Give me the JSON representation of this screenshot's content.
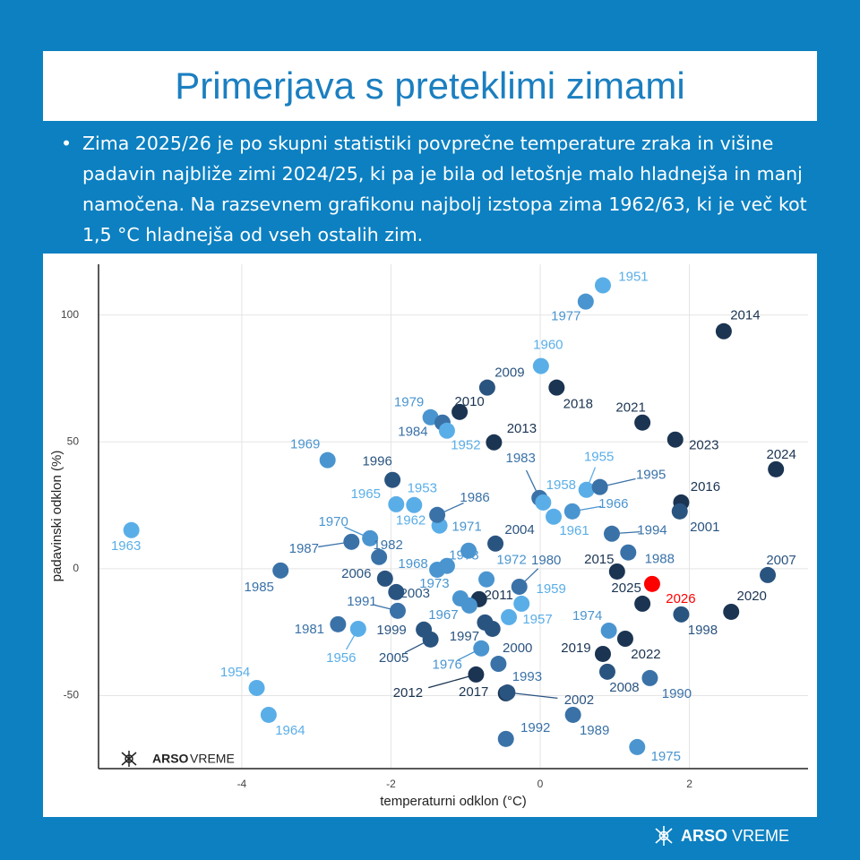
{
  "title": "Primerjava s preteklimi zimami",
  "bullet": "Zima 2025/26 je po skupni statistiki povprečne temperature zraka in višine padavin najbliže zimi 2024/25, ki pa je bila od letošnje malo hladnejša in manj namočena. Na razsevnem grafikonu najbolj izstopa zima 1962/63, ki je več kot 1,5 °C hladnejša od vseh ostalih zim.",
  "logo": {
    "brand": "ARSO",
    "name": "VREME"
  },
  "chart_data": {
    "type": "scatter",
    "x_label": "temperaturni odklon (°C)",
    "y_label": "padavinski odklon (%)",
    "xlim": [
      -5.92,
      3.59
    ],
    "ylim": [
      -78.8,
      120
    ],
    "xticks": [
      -4,
      -2,
      0,
      2
    ],
    "yticks": [
      -50,
      0,
      50,
      100
    ],
    "grid": true,
    "points": [
      {
        "label": "1951",
        "x": 0.84,
        "y": 111.7,
        "color": "#5aaee8"
      },
      {
        "label": "1977",
        "x": 0.61,
        "y": 105.3,
        "color": "#4a95d0"
      },
      {
        "label": "2014",
        "x": 2.46,
        "y": 93.6,
        "color": "#1b3452"
      },
      {
        "label": "1960",
        "x": 0.01,
        "y": 79.9,
        "color": "#5aaee8"
      },
      {
        "label": "2009",
        "x": -0.71,
        "y": 71.4,
        "color": "#2a5480"
      },
      {
        "label": "2018",
        "x": 0.22,
        "y": 71.4,
        "color": "#1b3452"
      },
      {
        "label": "1979",
        "x": -1.47,
        "y": 59.7,
        "color": "#4a95d0"
      },
      {
        "label": "1984",
        "x": -1.31,
        "y": 57.6,
        "color": "#3a72a8"
      },
      {
        "label": "1952",
        "x": -1.25,
        "y": 54.4,
        "color": "#5aaee8"
      },
      {
        "label": "2010",
        "x": -1.08,
        "y": 61.8,
        "color": "#1b3452"
      },
      {
        "label": "2021",
        "x": 1.37,
        "y": 57.6,
        "color": "#1b3452"
      },
      {
        "label": "2013",
        "x": -0.62,
        "y": 49.8,
        "color": "#1b3452"
      },
      {
        "label": "2023",
        "x": 1.81,
        "y": 50.9,
        "color": "#1b3452"
      },
      {
        "label": "2024",
        "x": 3.16,
        "y": 39.2,
        "color": "#1b3452"
      },
      {
        "label": "1969",
        "x": -2.85,
        "y": 42.8,
        "color": "#4a95d0"
      },
      {
        "label": "1996",
        "x": -1.98,
        "y": 35.0,
        "color": "#2a5480"
      },
      {
        "label": "1965",
        "x": -1.93,
        "y": 25.4,
        "color": "#5aaee8"
      },
      {
        "label": "1953",
        "x": -1.69,
        "y": 25.1,
        "color": "#5aaee8"
      },
      {
        "label": "1962",
        "x": -1.35,
        "y": 17.0,
        "color": "#5aaee8"
      },
      {
        "label": "1986",
        "x": -1.38,
        "y": 21.2,
        "color": "#3a72a8"
      },
      {
        "label": "1963",
        "x": -5.48,
        "y": 15.2,
        "color": "#5aaee8"
      },
      {
        "label": "1983",
        "x": -0.01,
        "y": 27.9,
        "color": "#3a72a8"
      },
      {
        "label": "1958",
        "x": 0.04,
        "y": 26.1,
        "color": "#5aaee8"
      },
      {
        "label": "1955",
        "x": 0.62,
        "y": 31.1,
        "color": "#5aaee8"
      },
      {
        "label": "1995",
        "x": 0.8,
        "y": 32.2,
        "color": "#3a72a8"
      },
      {
        "label": "1966",
        "x": 0.43,
        "y": 22.6,
        "color": "#4a95d0"
      },
      {
        "label": "1961",
        "x": 0.18,
        "y": 20.5,
        "color": "#5aaee8"
      },
      {
        "label": "2016",
        "x": 1.89,
        "y": 26.1,
        "color": "#1b3452"
      },
      {
        "label": "2001",
        "x": 1.87,
        "y": 22.6,
        "color": "#2a5480"
      },
      {
        "label": "1994",
        "x": 0.96,
        "y": 13.8,
        "color": "#3a72a8"
      },
      {
        "label": "1970",
        "x": -2.28,
        "y": 12.0,
        "color": "#4a95d0"
      },
      {
        "label": "1987",
        "x": -2.53,
        "y": 10.6,
        "color": "#3a72a8"
      },
      {
        "label": "1982",
        "x": -2.16,
        "y": 4.6,
        "color": "#3a72a8"
      },
      {
        "label": "1971",
        "x": -0.96,
        "y": 7.1,
        "color": "#4a95d0"
      },
      {
        "label": "2004",
        "x": -0.6,
        "y": 9.9,
        "color": "#2a5480"
      },
      {
        "label": "1978",
        "x": -1.25,
        "y": 1.1,
        "color": "#4a95d0"
      },
      {
        "label": "1968",
        "x": -1.38,
        "y": -0.4,
        "color": "#4a95d0"
      },
      {
        "label": "1988",
        "x": 1.18,
        "y": 6.4,
        "color": "#3a72a8"
      },
      {
        "label": "2015",
        "x": 1.03,
        "y": -1.1,
        "color": "#1b3452"
      },
      {
        "label": "2007",
        "x": 3.05,
        "y": -2.5,
        "color": "#2a5480"
      },
      {
        "label": "1985",
        "x": -3.48,
        "y": -0.7,
        "color": "#3a72a8"
      },
      {
        "label": "2006",
        "x": -2.08,
        "y": -3.9,
        "color": "#2a5480"
      },
      {
        "label": "2003",
        "x": -1.93,
        "y": -9.2,
        "color": "#2a5480"
      },
      {
        "label": "1972",
        "x": -0.72,
        "y": -4.2,
        "color": "#4a95d0"
      },
      {
        "label": "1980",
        "x": -0.28,
        "y": -7.1,
        "color": "#3a72a8"
      },
      {
        "label": "2025",
        "x": 1.37,
        "y": -13.8,
        "color": "#1b3452"
      },
      {
        "label": "2026",
        "x": 1.5,
        "y": -6.0,
        "color": "#ff0000"
      },
      {
        "label": "1998",
        "x": 1.89,
        "y": -18.0,
        "color": "#2a5480"
      },
      {
        "label": "2020",
        "x": 2.56,
        "y": -17.0,
        "color": "#1b3452"
      },
      {
        "label": "1973",
        "x": -1.07,
        "y": -11.7,
        "color": "#4a95d0"
      },
      {
        "label": "2011",
        "x": -0.82,
        "y": -12.0,
        "color": "#1b3452"
      },
      {
        "label": "1959",
        "x": -0.25,
        "y": -13.8,
        "color": "#5aaee8"
      },
      {
        "label": "1991",
        "x": -1.91,
        "y": -16.6,
        "color": "#3a72a8"
      },
      {
        "label": "1967",
        "x": -0.95,
        "y": -14.5,
        "color": "#4a95d0"
      },
      {
        "label": "1957",
        "x": -0.42,
        "y": -19.1,
        "color": "#5aaee8"
      },
      {
        "label": "1974",
        "x": 0.92,
        "y": -24.4,
        "color": "#4a95d0"
      },
      {
        "label": "1981",
        "x": -2.71,
        "y": -21.9,
        "color": "#3a72a8"
      },
      {
        "label": "1956",
        "x": -2.44,
        "y": -23.7,
        "color": "#5aaee8"
      },
      {
        "label": "1999",
        "x": -1.56,
        "y": -24.0,
        "color": "#2a5480"
      },
      {
        "label": "2005",
        "x": -1.47,
        "y": -27.9,
        "color": "#2a5480"
      },
      {
        "label": "1997",
        "x": -0.74,
        "y": -21.2,
        "color": "#2a5480"
      },
      {
        "label": "2000",
        "x": -0.64,
        "y": -23.7,
        "color": "#2a5480"
      },
      {
        "label": "2019",
        "x": 0.84,
        "y": -33.6,
        "color": "#1b3452"
      },
      {
        "label": "2022",
        "x": 1.14,
        "y": -27.6,
        "color": "#1b3452"
      },
      {
        "label": "1976",
        "x": -0.79,
        "y": -31.4,
        "color": "#4a95d0"
      },
      {
        "label": "2012",
        "x": -0.86,
        "y": -41.7,
        "color": "#1b3452"
      },
      {
        "label": "1993",
        "x": -0.56,
        "y": -37.5,
        "color": "#3a72a8"
      },
      {
        "label": "2008",
        "x": 0.9,
        "y": -40.6,
        "color": "#2a5480"
      },
      {
        "label": "1990",
        "x": 1.47,
        "y": -43.1,
        "color": "#3a72a8"
      },
      {
        "label": "1954",
        "x": -3.8,
        "y": -47.0,
        "color": "#5aaee8"
      },
      {
        "label": "2017",
        "x": -0.46,
        "y": -49.1,
        "color": "#1b3452"
      },
      {
        "label": "2002",
        "x": -0.44,
        "y": -48.8,
        "color": "#2a5480"
      },
      {
        "label": "1964",
        "x": -3.64,
        "y": -57.6,
        "color": "#5aaee8"
      },
      {
        "label": "1989",
        "x": 0.44,
        "y": -57.6,
        "color": "#3a72a8"
      },
      {
        "label": "1992",
        "x": -0.46,
        "y": -67.1,
        "color": "#3a72a8"
      },
      {
        "label": "1975",
        "x": 1.3,
        "y": -70.3,
        "color": "#4a95d0"
      }
    ]
  }
}
